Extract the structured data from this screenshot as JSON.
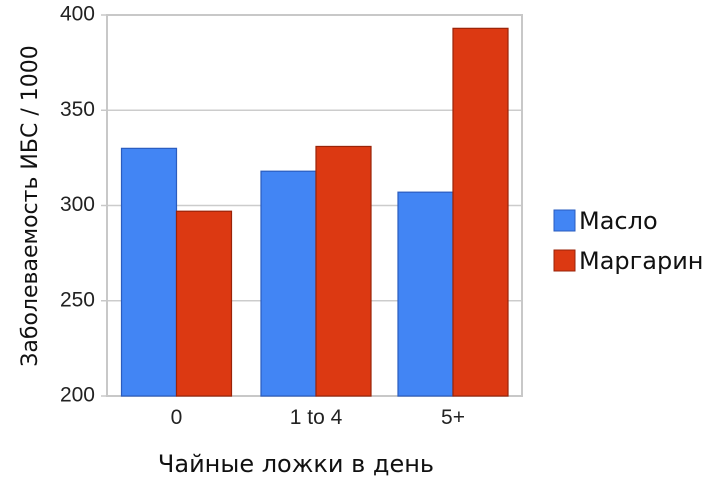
{
  "chart_data": {
    "type": "bar",
    "title": "",
    "xlabel": "Чайные ложки в день",
    "ylabel": "Заболеваемость ИБС / 1000",
    "categories": [
      "0",
      "1 to 4",
      "5+"
    ],
    "series": [
      {
        "name": "Масло",
        "color": "#4285F4",
        "border": "#2a5cbf",
        "values": [
          330,
          318,
          307
        ]
      },
      {
        "name": "Маргарин",
        "color": "#DC3912",
        "border": "#9a2308",
        "values": [
          297,
          331,
          393
        ]
      }
    ],
    "ylim": [
      200,
      400
    ],
    "yticks": [
      200,
      250,
      300,
      350,
      400
    ],
    "grid": true,
    "legend_position": "right"
  }
}
